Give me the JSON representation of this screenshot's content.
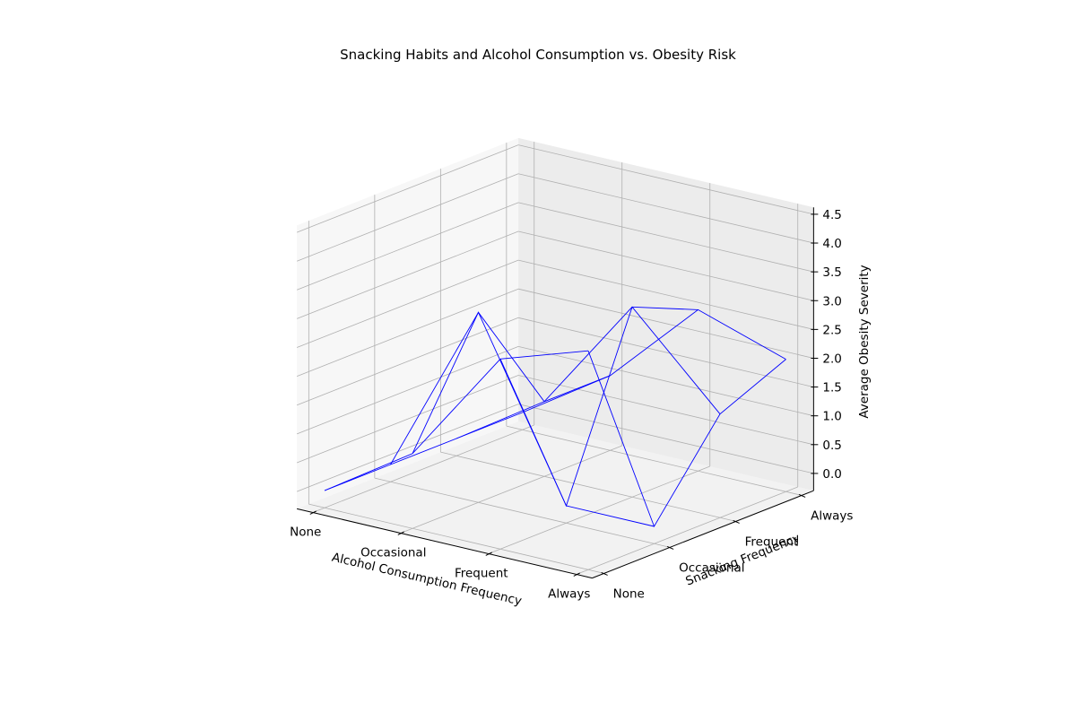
{
  "chart_data": {
    "type": "wireframe3d",
    "title": "Snacking Habits and Alcohol Consumption vs. Obesity Risk",
    "xlabel": "Alcohol Consumption Frequency",
    "ylabel": "Snacking Frequency",
    "zlabel": "Average Obesity Severity",
    "x_categories": [
      "None",
      "Occasional",
      "Frequent",
      "Always"
    ],
    "y_categories": [
      "None",
      "Occasional",
      "Frequent",
      "Always"
    ],
    "zlim": [
      0,
      4.5
    ],
    "z_ticks": [
      "0.0",
      "0.5",
      "1.0",
      "1.5",
      "2.0",
      "2.5",
      "3.0",
      "3.5",
      "4.0",
      "4.5"
    ],
    "grid": true,
    "line_color": "#0000ff",
    "z_values": [
      [
        0.0,
        0.0,
        0.0,
        0.0
      ],
      [
        1.0,
        3.0,
        1.0,
        1.0
      ],
      [
        3.0,
        0.0,
        3.0,
        2.5
      ],
      [
        3.5,
        0.0,
        1.5,
        2.0
      ]
    ]
  }
}
